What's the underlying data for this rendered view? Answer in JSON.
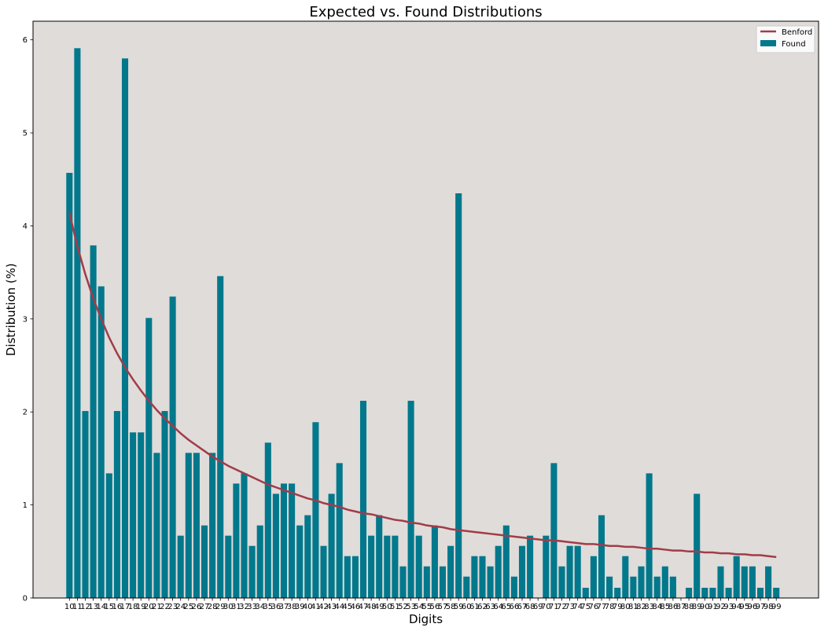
{
  "chart_data": {
    "type": "bar",
    "title": "Expected vs. Found Distributions",
    "xlabel": "Digits",
    "ylabel": "Distribution (%)",
    "ylim": [
      0,
      6.2
    ],
    "yticks": [
      0,
      1,
      2,
      3,
      4,
      5,
      6
    ],
    "grid": false,
    "legend_position": "top-right",
    "colors": {
      "plot_bg": "#e0dcd9",
      "bar": "#02788c",
      "line": "#a13c4a"
    },
    "categories": [
      "10",
      "11",
      "12",
      "13",
      "14",
      "15",
      "16",
      "17",
      "18",
      "19",
      "20",
      "21",
      "22",
      "23",
      "24",
      "25",
      "26",
      "27",
      "28",
      "29",
      "30",
      "31",
      "32",
      "33",
      "34",
      "35",
      "36",
      "37",
      "38",
      "39",
      "40",
      "41",
      "42",
      "43",
      "44",
      "45",
      "46",
      "47",
      "48",
      "49",
      "50",
      "51",
      "52",
      "53",
      "54",
      "55",
      "56",
      "57",
      "58",
      "59",
      "60",
      "61",
      "62",
      "63",
      "64",
      "65",
      "66",
      "67",
      "68",
      "69",
      "70",
      "71",
      "72",
      "73",
      "74",
      "75",
      "76",
      "77",
      "78",
      "79",
      "80",
      "81",
      "82",
      "83",
      "84",
      "85",
      "86",
      "87",
      "88",
      "89",
      "90",
      "91",
      "92",
      "93",
      "94",
      "95",
      "96",
      "97",
      "98",
      "99"
    ],
    "series": [
      {
        "name": "Found",
        "kind": "bar",
        "values": [
          4.57,
          5.91,
          2.01,
          3.79,
          3.35,
          1.34,
          2.01,
          5.8,
          1.78,
          1.78,
          3.01,
          1.56,
          2.01,
          3.24,
          0.67,
          1.56,
          1.56,
          0.78,
          1.56,
          3.46,
          0.67,
          1.23,
          1.34,
          0.56,
          0.78,
          1.67,
          1.12,
          1.23,
          1.23,
          0.78,
          0.89,
          1.89,
          0.56,
          1.12,
          1.45,
          0.45,
          0.45,
          2.12,
          0.67,
          0.89,
          0.67,
          0.67,
          0.34,
          2.12,
          0.67,
          0.34,
          0.78,
          0.34,
          0.56,
          4.35,
          0.23,
          0.45,
          0.45,
          0.34,
          0.56,
          0.78,
          0.23,
          0.56,
          0.67,
          0.0,
          0.67,
          1.45,
          0.34,
          0.56,
          0.56,
          0.11,
          0.45,
          0.89,
          0.23,
          0.11,
          0.45,
          0.23,
          0.34,
          1.34,
          0.23,
          0.34,
          0.23,
          0.0,
          0.11,
          1.12,
          0.11,
          0.11,
          0.34,
          0.11,
          0.45,
          0.34,
          0.34,
          0.11,
          0.34,
          0.11
        ]
      },
      {
        "name": "Benford",
        "kind": "line",
        "values": [
          4.14,
          3.78,
          3.48,
          3.22,
          3.0,
          2.8,
          2.63,
          2.48,
          2.35,
          2.23,
          2.12,
          2.02,
          1.93,
          1.85,
          1.77,
          1.7,
          1.64,
          1.58,
          1.52,
          1.47,
          1.42,
          1.38,
          1.34,
          1.3,
          1.26,
          1.22,
          1.19,
          1.16,
          1.13,
          1.1,
          1.07,
          1.05,
          1.02,
          1.0,
          0.98,
          0.95,
          0.93,
          0.91,
          0.9,
          0.88,
          0.86,
          0.84,
          0.83,
          0.81,
          0.8,
          0.78,
          0.77,
          0.76,
          0.74,
          0.73,
          0.72,
          0.71,
          0.7,
          0.69,
          0.68,
          0.67,
          0.66,
          0.65,
          0.64,
          0.63,
          0.62,
          0.62,
          0.61,
          0.6,
          0.59,
          0.58,
          0.58,
          0.57,
          0.56,
          0.56,
          0.55,
          0.55,
          0.54,
          0.53,
          0.53,
          0.52,
          0.51,
          0.51,
          0.5,
          0.5,
          0.49,
          0.49,
          0.48,
          0.48,
          0.47,
          0.47,
          0.46,
          0.46,
          0.45,
          0.44
        ]
      }
    ]
  }
}
